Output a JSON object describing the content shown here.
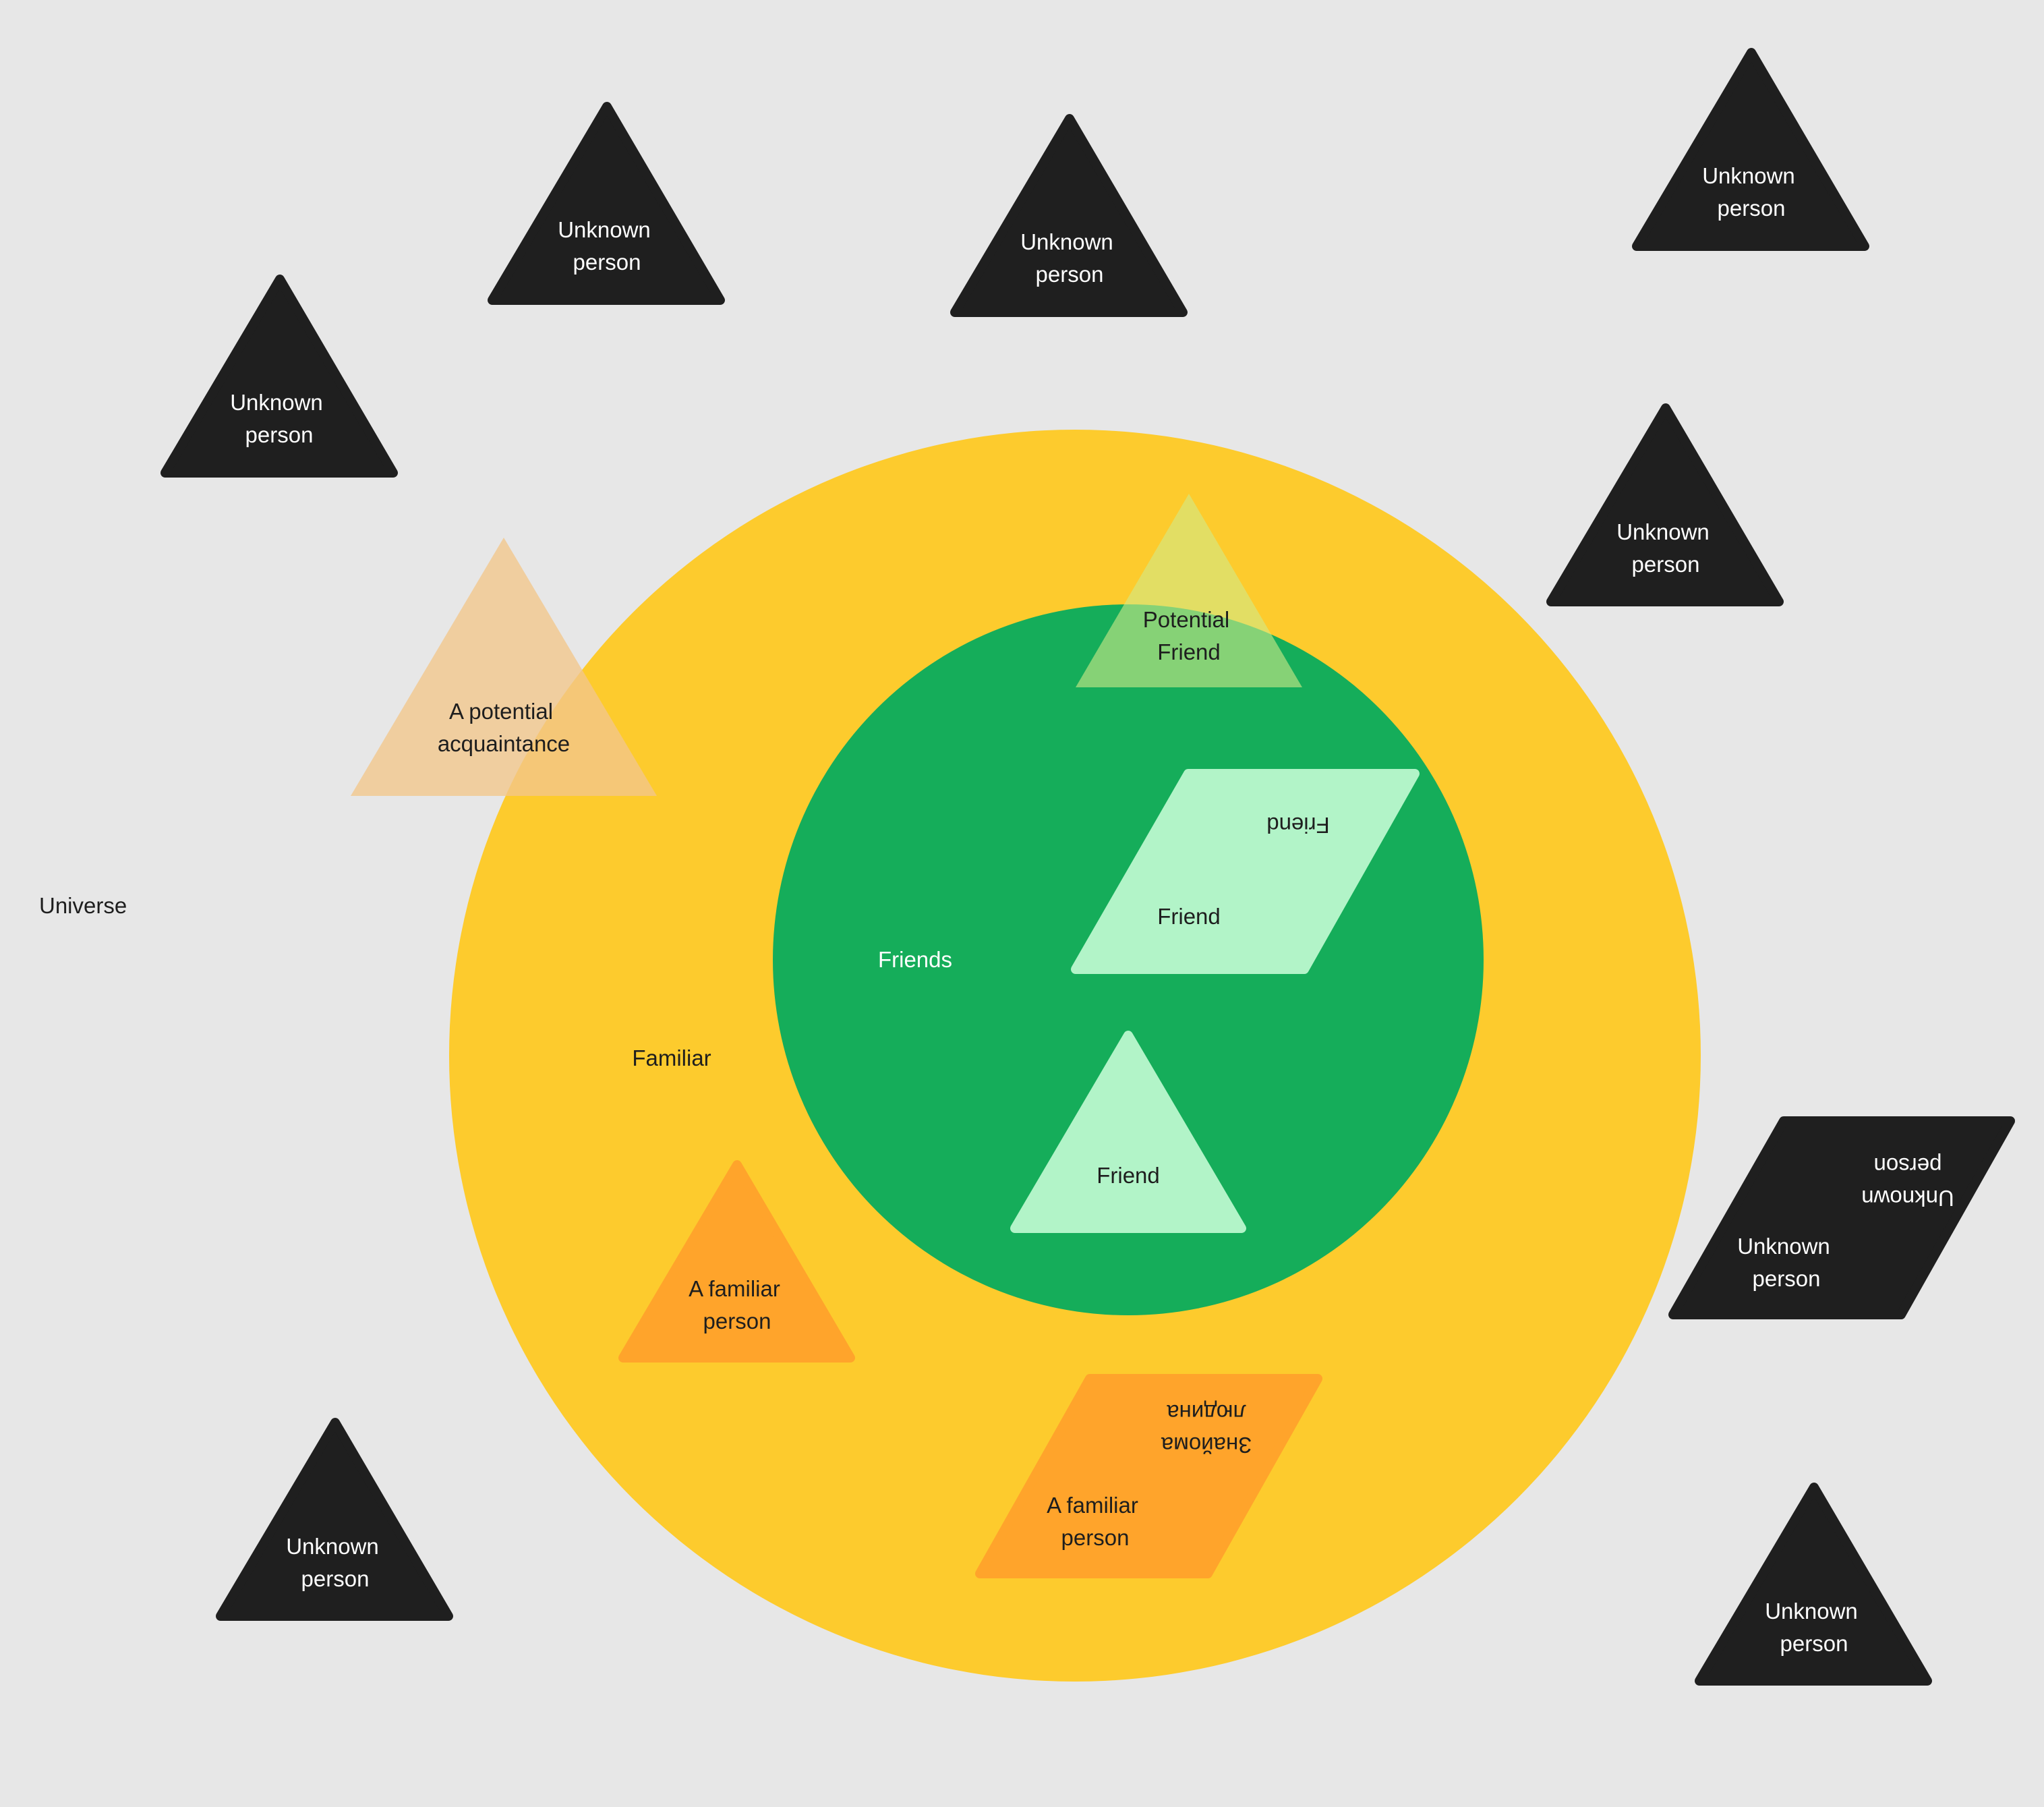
{
  "diagram": {
    "universe_label": "Universe",
    "familiar_label": "Familiar",
    "friends_label": "Friends",
    "colors": {
      "background": "#e7e7e7",
      "familiar_circle": "#fdcb2d",
      "friends_circle": "#15ad5a",
      "unknown_shape": "#1f1f1f",
      "friend_shape": "#b2f4c8",
      "familiar_shape": "#ffa42b",
      "potential_acquaintance": "#f3c78c",
      "potential_friend": "#d1ec8a"
    },
    "unknown_person": {
      "line1": "Unknown",
      "line2": "person"
    },
    "potential_acquaintance": {
      "line1": "A potential",
      "line2": "acquaintance"
    },
    "potential_friend": {
      "line1": "Potential",
      "line2": "Friend"
    },
    "friend_label": "Friend",
    "familiar_person": {
      "line1": "A familiar",
      "line2": "person"
    },
    "familiar_person_ua": {
      "line1": "Знайома",
      "line2": "людина"
    }
  }
}
